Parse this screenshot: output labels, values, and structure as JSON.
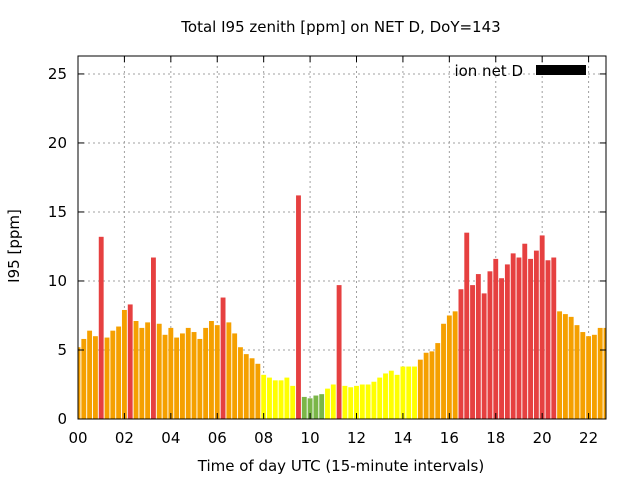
{
  "chart_data": {
    "type": "bar",
    "title": "Total I95 zenith [ppm] on NET D, DoY=143",
    "xlabel": "Time of day UTC (15-minute intervals)",
    "ylabel": "I95 [ppm]",
    "xlim": [
      0,
      22.75
    ],
    "ylim": [
      0,
      26.3
    ],
    "xticks": [
      "00",
      "02",
      "04",
      "06",
      "08",
      "10",
      "12",
      "14",
      "16",
      "18",
      "20",
      "22"
    ],
    "yticks": [
      "0",
      "5",
      "10",
      "15",
      "20",
      "25"
    ],
    "grid": true,
    "legend": {
      "position": "top-right",
      "label": "ion net D",
      "color": "#000000"
    },
    "bar_width_hours": 0.21,
    "colors": {
      "green": "#7ab648",
      "yellow": "#ffff00",
      "orange": "#f5a000",
      "red": "#e64040"
    },
    "bars": [
      {
        "x": 0.0,
        "value": 5.2,
        "color": "orange"
      },
      {
        "x": 0.25,
        "value": 5.8,
        "color": "orange"
      },
      {
        "x": 0.5,
        "value": 6.4,
        "color": "orange"
      },
      {
        "x": 0.75,
        "value": 6.0,
        "color": "orange"
      },
      {
        "x": 1.0,
        "value": 13.2,
        "color": "red"
      },
      {
        "x": 1.25,
        "value": 5.9,
        "color": "orange"
      },
      {
        "x": 1.5,
        "value": 6.4,
        "color": "orange"
      },
      {
        "x": 1.75,
        "value": 6.7,
        "color": "orange"
      },
      {
        "x": 2.0,
        "value": 7.9,
        "color": "orange"
      },
      {
        "x": 2.25,
        "value": 8.3,
        "color": "red"
      },
      {
        "x": 2.5,
        "value": 7.1,
        "color": "orange"
      },
      {
        "x": 2.75,
        "value": 6.6,
        "color": "orange"
      },
      {
        "x": 3.0,
        "value": 7.0,
        "color": "orange"
      },
      {
        "x": 3.25,
        "value": 11.7,
        "color": "red"
      },
      {
        "x": 3.5,
        "value": 6.9,
        "color": "orange"
      },
      {
        "x": 3.75,
        "value": 6.1,
        "color": "orange"
      },
      {
        "x": 4.0,
        "value": 6.6,
        "color": "orange"
      },
      {
        "x": 4.25,
        "value": 5.9,
        "color": "orange"
      },
      {
        "x": 4.5,
        "value": 6.2,
        "color": "orange"
      },
      {
        "x": 4.75,
        "value": 6.6,
        "color": "orange"
      },
      {
        "x": 5.0,
        "value": 6.3,
        "color": "orange"
      },
      {
        "x": 5.25,
        "value": 5.8,
        "color": "orange"
      },
      {
        "x": 5.5,
        "value": 6.6,
        "color": "orange"
      },
      {
        "x": 5.75,
        "value": 7.1,
        "color": "orange"
      },
      {
        "x": 6.0,
        "value": 6.8,
        "color": "orange"
      },
      {
        "x": 6.25,
        "value": 8.8,
        "color": "red"
      },
      {
        "x": 6.5,
        "value": 7.0,
        "color": "orange"
      },
      {
        "x": 6.75,
        "value": 6.2,
        "color": "orange"
      },
      {
        "x": 7.0,
        "value": 5.2,
        "color": "orange"
      },
      {
        "x": 7.25,
        "value": 4.7,
        "color": "orange"
      },
      {
        "x": 7.5,
        "value": 4.4,
        "color": "orange"
      },
      {
        "x": 7.75,
        "value": 4.0,
        "color": "orange"
      },
      {
        "x": 8.0,
        "value": 3.2,
        "color": "yellow"
      },
      {
        "x": 8.25,
        "value": 3.0,
        "color": "yellow"
      },
      {
        "x": 8.5,
        "value": 2.8,
        "color": "yellow"
      },
      {
        "x": 8.75,
        "value": 2.8,
        "color": "yellow"
      },
      {
        "x": 9.0,
        "value": 3.0,
        "color": "yellow"
      },
      {
        "x": 9.25,
        "value": 2.4,
        "color": "yellow"
      },
      {
        "x": 9.5,
        "value": 16.2,
        "color": "red"
      },
      {
        "x": 9.75,
        "value": 1.6,
        "color": "green"
      },
      {
        "x": 10.0,
        "value": 1.5,
        "color": "green"
      },
      {
        "x": 10.25,
        "value": 1.7,
        "color": "green"
      },
      {
        "x": 10.5,
        "value": 1.8,
        "color": "green"
      },
      {
        "x": 10.75,
        "value": 2.2,
        "color": "yellow"
      },
      {
        "x": 11.0,
        "value": 2.5,
        "color": "yellow"
      },
      {
        "x": 11.25,
        "value": 9.7,
        "color": "red"
      },
      {
        "x": 11.5,
        "value": 2.4,
        "color": "yellow"
      },
      {
        "x": 11.75,
        "value": 2.3,
        "color": "yellow"
      },
      {
        "x": 12.0,
        "value": 2.4,
        "color": "yellow"
      },
      {
        "x": 12.25,
        "value": 2.5,
        "color": "yellow"
      },
      {
        "x": 12.5,
        "value": 2.5,
        "color": "yellow"
      },
      {
        "x": 12.75,
        "value": 2.7,
        "color": "yellow"
      },
      {
        "x": 13.0,
        "value": 3.0,
        "color": "yellow"
      },
      {
        "x": 13.25,
        "value": 3.3,
        "color": "yellow"
      },
      {
        "x": 13.5,
        "value": 3.5,
        "color": "yellow"
      },
      {
        "x": 13.75,
        "value": 3.2,
        "color": "yellow"
      },
      {
        "x": 14.0,
        "value": 3.8,
        "color": "yellow"
      },
      {
        "x": 14.25,
        "value": 3.8,
        "color": "yellow"
      },
      {
        "x": 14.5,
        "value": 3.8,
        "color": "yellow"
      },
      {
        "x": 14.75,
        "value": 4.3,
        "color": "orange"
      },
      {
        "x": 15.0,
        "value": 4.8,
        "color": "orange"
      },
      {
        "x": 15.25,
        "value": 4.9,
        "color": "orange"
      },
      {
        "x": 15.5,
        "value": 5.5,
        "color": "orange"
      },
      {
        "x": 15.75,
        "value": 6.9,
        "color": "orange"
      },
      {
        "x": 16.0,
        "value": 7.5,
        "color": "orange"
      },
      {
        "x": 16.25,
        "value": 7.8,
        "color": "orange"
      },
      {
        "x": 16.5,
        "value": 9.4,
        "color": "red"
      },
      {
        "x": 16.75,
        "value": 13.5,
        "color": "red"
      },
      {
        "x": 17.0,
        "value": 9.7,
        "color": "red"
      },
      {
        "x": 17.25,
        "value": 10.5,
        "color": "red"
      },
      {
        "x": 17.5,
        "value": 9.1,
        "color": "red"
      },
      {
        "x": 17.75,
        "value": 10.7,
        "color": "red"
      },
      {
        "x": 18.0,
        "value": 11.6,
        "color": "red"
      },
      {
        "x": 18.25,
        "value": 10.2,
        "color": "red"
      },
      {
        "x": 18.5,
        "value": 11.2,
        "color": "red"
      },
      {
        "x": 18.75,
        "value": 12.0,
        "color": "red"
      },
      {
        "x": 19.0,
        "value": 11.7,
        "color": "red"
      },
      {
        "x": 19.25,
        "value": 12.7,
        "color": "red"
      },
      {
        "x": 19.5,
        "value": 11.6,
        "color": "red"
      },
      {
        "x": 19.75,
        "value": 12.2,
        "color": "red"
      },
      {
        "x": 20.0,
        "value": 13.3,
        "color": "red"
      },
      {
        "x": 20.25,
        "value": 11.5,
        "color": "red"
      },
      {
        "x": 20.5,
        "value": 11.7,
        "color": "red"
      },
      {
        "x": 20.75,
        "value": 7.8,
        "color": "orange"
      },
      {
        "x": 21.0,
        "value": 7.6,
        "color": "orange"
      },
      {
        "x": 21.25,
        "value": 7.4,
        "color": "orange"
      },
      {
        "x": 21.5,
        "value": 6.8,
        "color": "orange"
      },
      {
        "x": 21.75,
        "value": 6.3,
        "color": "orange"
      },
      {
        "x": 22.0,
        "value": 6.0,
        "color": "orange"
      },
      {
        "x": 22.25,
        "value": 6.1,
        "color": "orange"
      },
      {
        "x": 22.5,
        "value": 6.6,
        "color": "orange"
      },
      {
        "x": 22.75,
        "value": 6.6,
        "color": "orange"
      }
    ]
  }
}
